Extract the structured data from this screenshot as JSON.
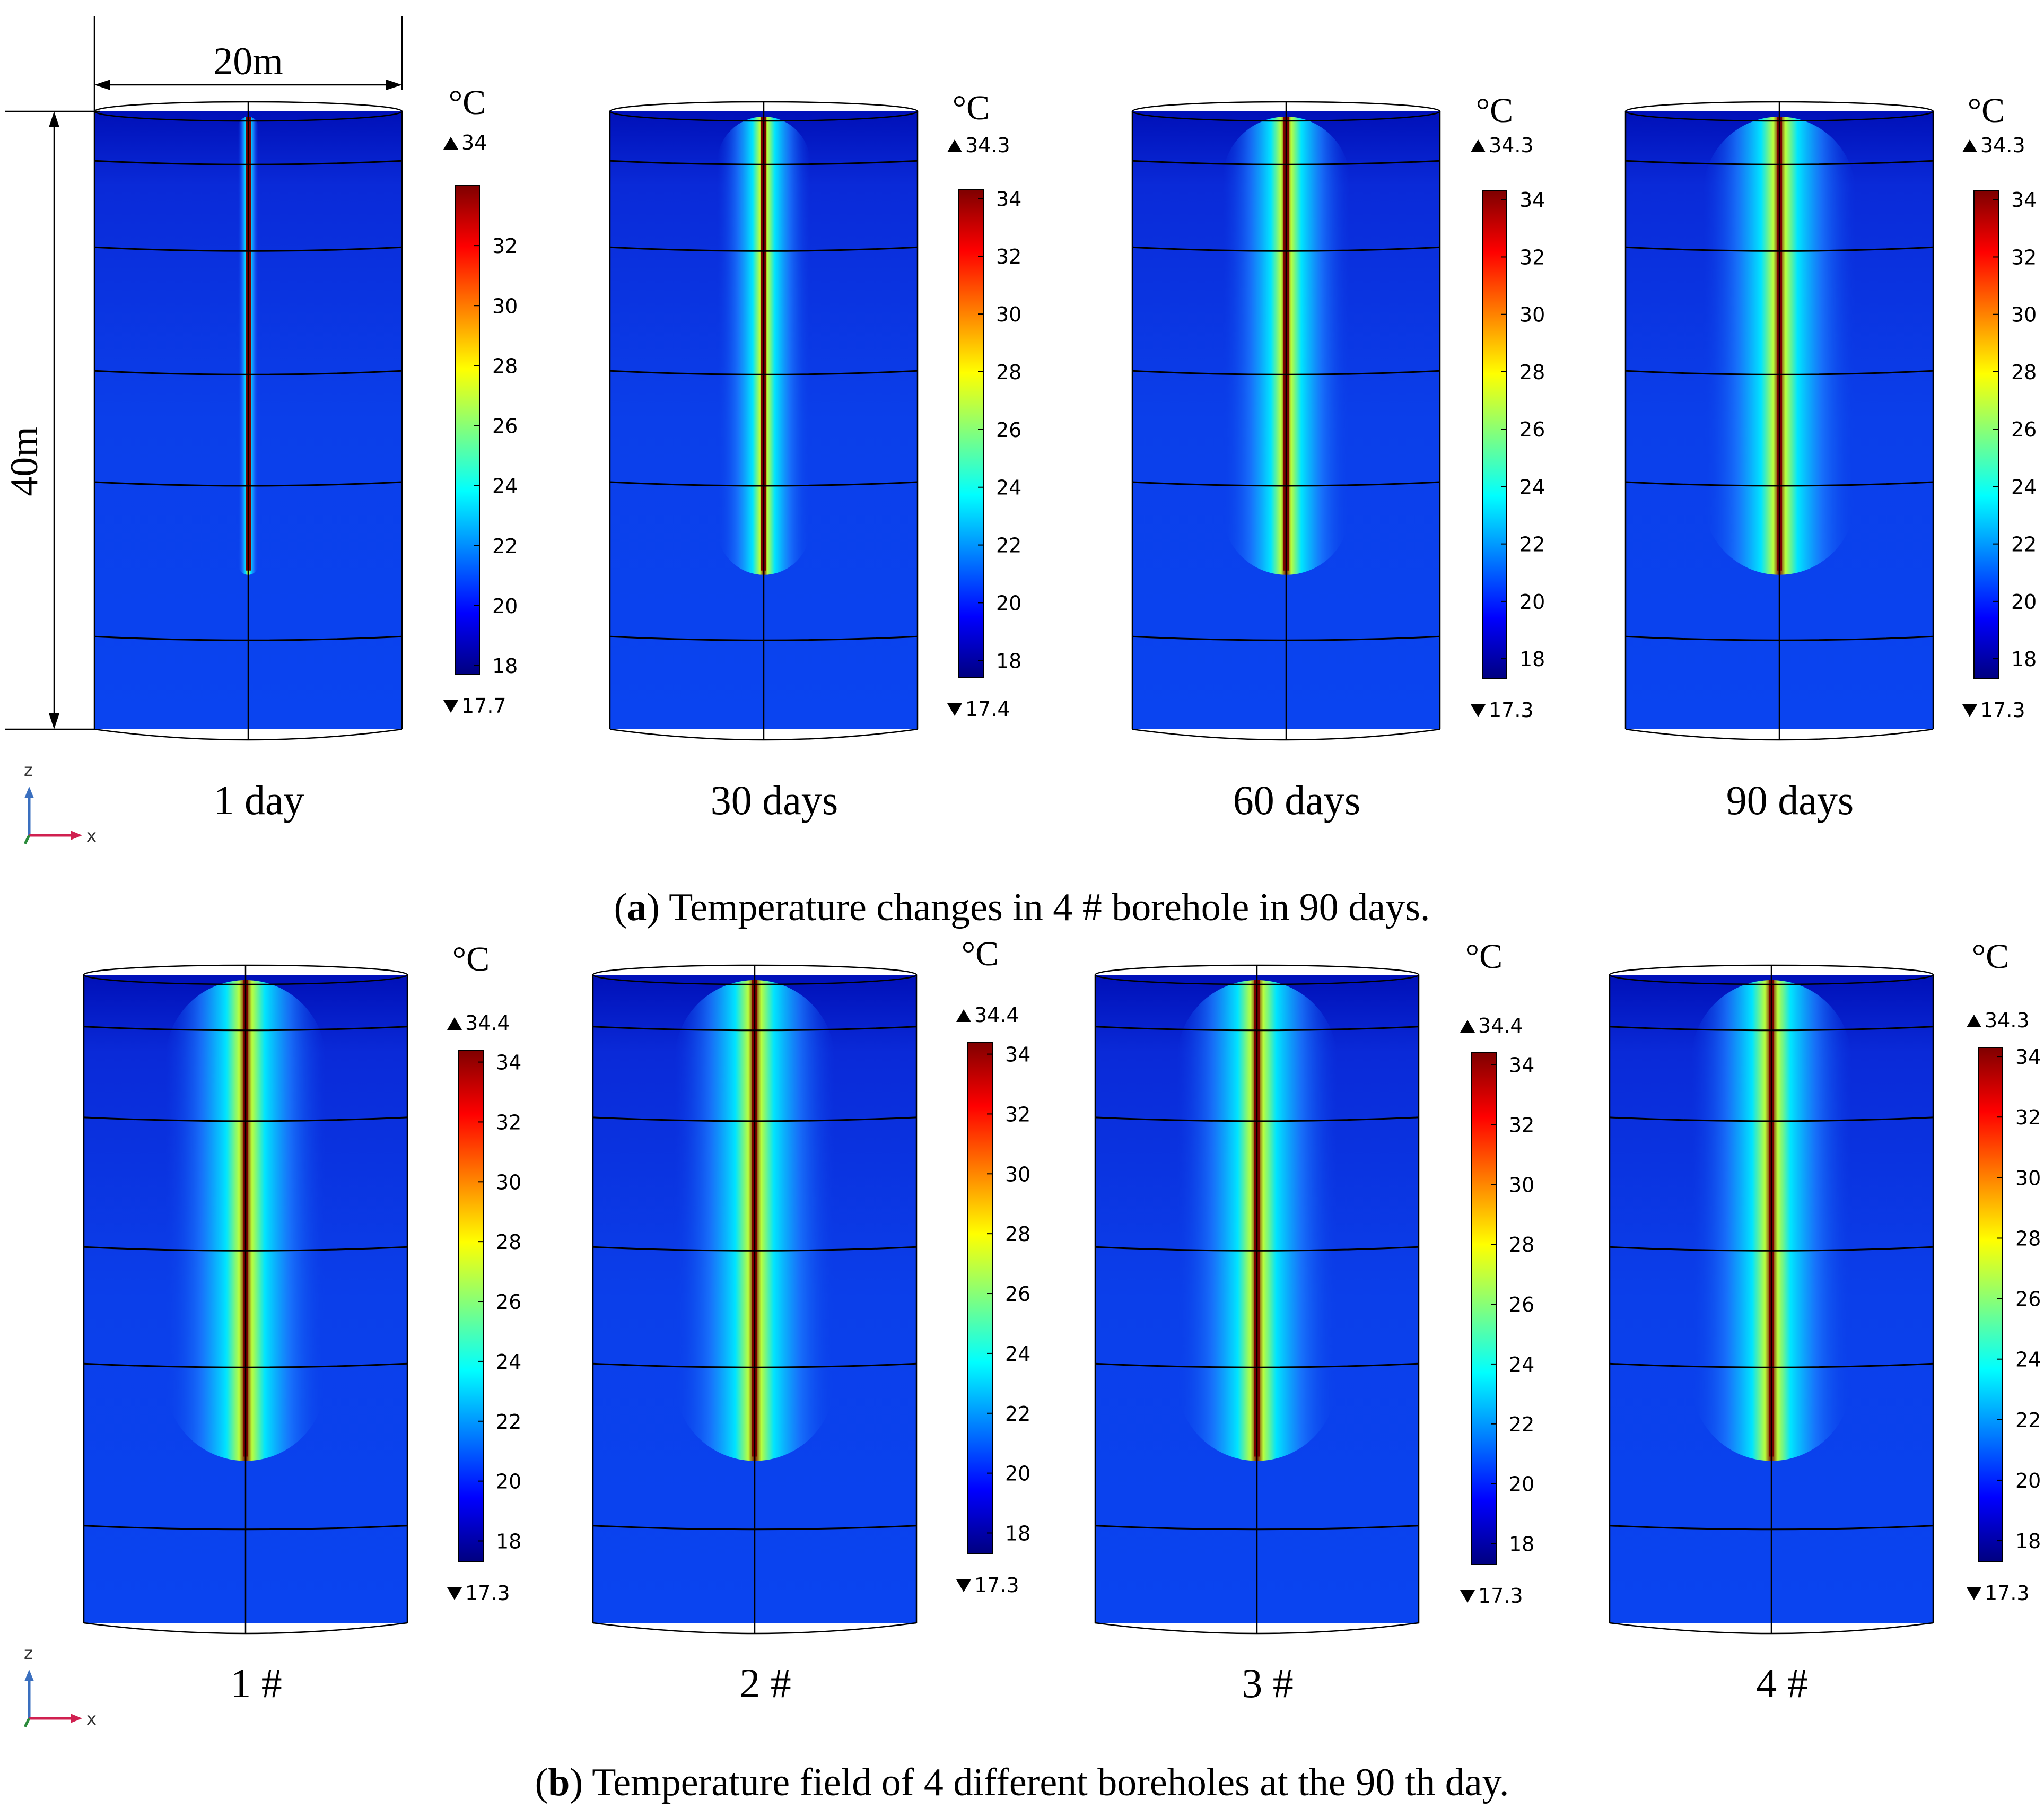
{
  "figure": {
    "colormap": [
      "#00007f",
      "#0000ff",
      "#007fff",
      "#00ffff",
      "#7fff7f",
      "#ffff00",
      "#ff7f00",
      "#ff0000",
      "#7f0000"
    ],
    "dimensions": {
      "width_label": "20m",
      "height_label": "40m"
    },
    "axis_triad": {
      "z_label": "z",
      "x_label": "x"
    },
    "panels": [
      {
        "id": "a",
        "caption_letter": "a",
        "caption_text": " Temperature changes in 4 # borehole in 90 days.",
        "plots": [
          {
            "label": "1 day",
            "unit": "°C",
            "max_label": "34",
            "min_label": "17.7",
            "ticks": [
              "32",
              "30",
              "28",
              "26",
              "24",
              "22",
              "20",
              "18"
            ],
            "scale_max": 34,
            "scale_min": 17.7,
            "plume_spread": 0.12
          },
          {
            "label": "30 days",
            "unit": "°C",
            "max_label": "34.3",
            "min_label": "17.4",
            "ticks": [
              "34",
              "32",
              "30",
              "28",
              "26",
              "24",
              "22",
              "20",
              "18"
            ],
            "scale_max": 34.3,
            "scale_min": 17.4,
            "plume_spread": 0.55
          },
          {
            "label": "60 days",
            "unit": "°C",
            "max_label": "34.3",
            "min_label": "17.3",
            "ticks": [
              "34",
              "32",
              "30",
              "28",
              "26",
              "24",
              "22",
              "20",
              "18"
            ],
            "scale_max": 34.3,
            "scale_min": 17.3,
            "plume_spread": 0.75
          },
          {
            "label": "90 days",
            "unit": "°C",
            "max_label": "34.3",
            "min_label": "17.3",
            "ticks": [
              "34",
              "32",
              "30",
              "28",
              "26",
              "24",
              "22",
              "20",
              "18"
            ],
            "scale_max": 34.3,
            "scale_min": 17.3,
            "plume_spread": 0.9
          }
        ]
      },
      {
        "id": "b",
        "caption_letter": "b",
        "caption_text": " Temperature field of 4 different boreholes at the 90 th day.",
        "plots": [
          {
            "label": "1 #",
            "unit": "°C",
            "max_label": "34.4",
            "min_label": "17.3",
            "ticks": [
              "34",
              "32",
              "30",
              "28",
              "26",
              "24",
              "22",
              "20",
              "18"
            ],
            "scale_max": 34.4,
            "scale_min": 17.3,
            "plume_spread": 0.9
          },
          {
            "label": "2 #",
            "unit": "°C",
            "max_label": "34.4",
            "min_label": "17.3",
            "ticks": [
              "34",
              "32",
              "30",
              "28",
              "26",
              "24",
              "22",
              "20",
              "18"
            ],
            "scale_max": 34.4,
            "scale_min": 17.3,
            "plume_spread": 0.9
          },
          {
            "label": "3 #",
            "unit": "°C",
            "max_label": "34.4",
            "min_label": "17.3",
            "ticks": [
              "34",
              "32",
              "30",
              "28",
              "26",
              "24",
              "22",
              "20",
              "18"
            ],
            "scale_max": 34.4,
            "scale_min": 17.3,
            "plume_spread": 0.9
          },
          {
            "label": "4 #",
            "unit": "°C",
            "max_label": "34.3",
            "min_label": "17.3",
            "ticks": [
              "34",
              "32",
              "30",
              "28",
              "26",
              "24",
              "22",
              "20",
              "18"
            ],
            "scale_max": 34.3,
            "scale_min": 17.3,
            "plume_spread": 0.9
          }
        ]
      }
    ]
  }
}
